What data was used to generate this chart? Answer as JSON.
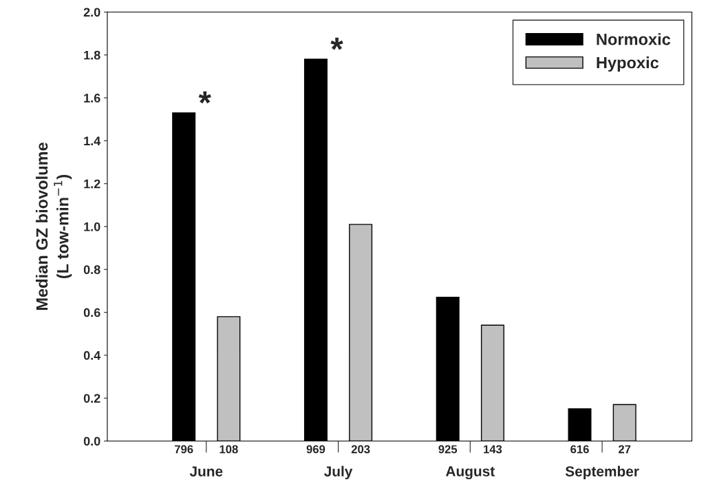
{
  "chart_data": {
    "type": "bar",
    "ylabel": "Median GZ biovolume\n(L tow-min$^{−1}$)",
    "categories": [
      "June",
      "July",
      "August",
      "September"
    ],
    "series": [
      {
        "name": "Normoxic",
        "color": "#000000",
        "values": [
          1.53,
          1.78,
          0.67,
          0.15
        ]
      },
      {
        "name": "Hypoxic",
        "color": "#c0c0c0",
        "values": [
          0.58,
          1.01,
          0.54,
          0.17
        ]
      }
    ],
    "ylim": [
      0,
      2.0
    ],
    "yticks": [
      {
        "value": 0,
        "label": "0.0"
      },
      {
        "value": 0.2,
        "label": "0.2"
      },
      {
        "value": 0.4,
        "label": "0.4"
      },
      {
        "value": 0.6,
        "label": "0.6"
      },
      {
        "value": 0.8,
        "label": "0.8"
      },
      {
        "value": 1.0,
        "label": "1.0"
      },
      {
        "value": 1.2,
        "label": "1.2"
      },
      {
        "value": 1.4,
        "label": "1.4"
      },
      {
        "value": 1.6,
        "label": "1.6"
      },
      {
        "value": 1.8,
        "label": "1.8"
      },
      {
        "value": 2.0,
        "label": "2.0"
      }
    ],
    "legend": "top right",
    "grid": false,
    "annotations": [
      "*",
      "*",
      "796",
      "108",
      "969",
      "203",
      "925",
      "143",
      "616",
      "27"
    ]
  }
}
